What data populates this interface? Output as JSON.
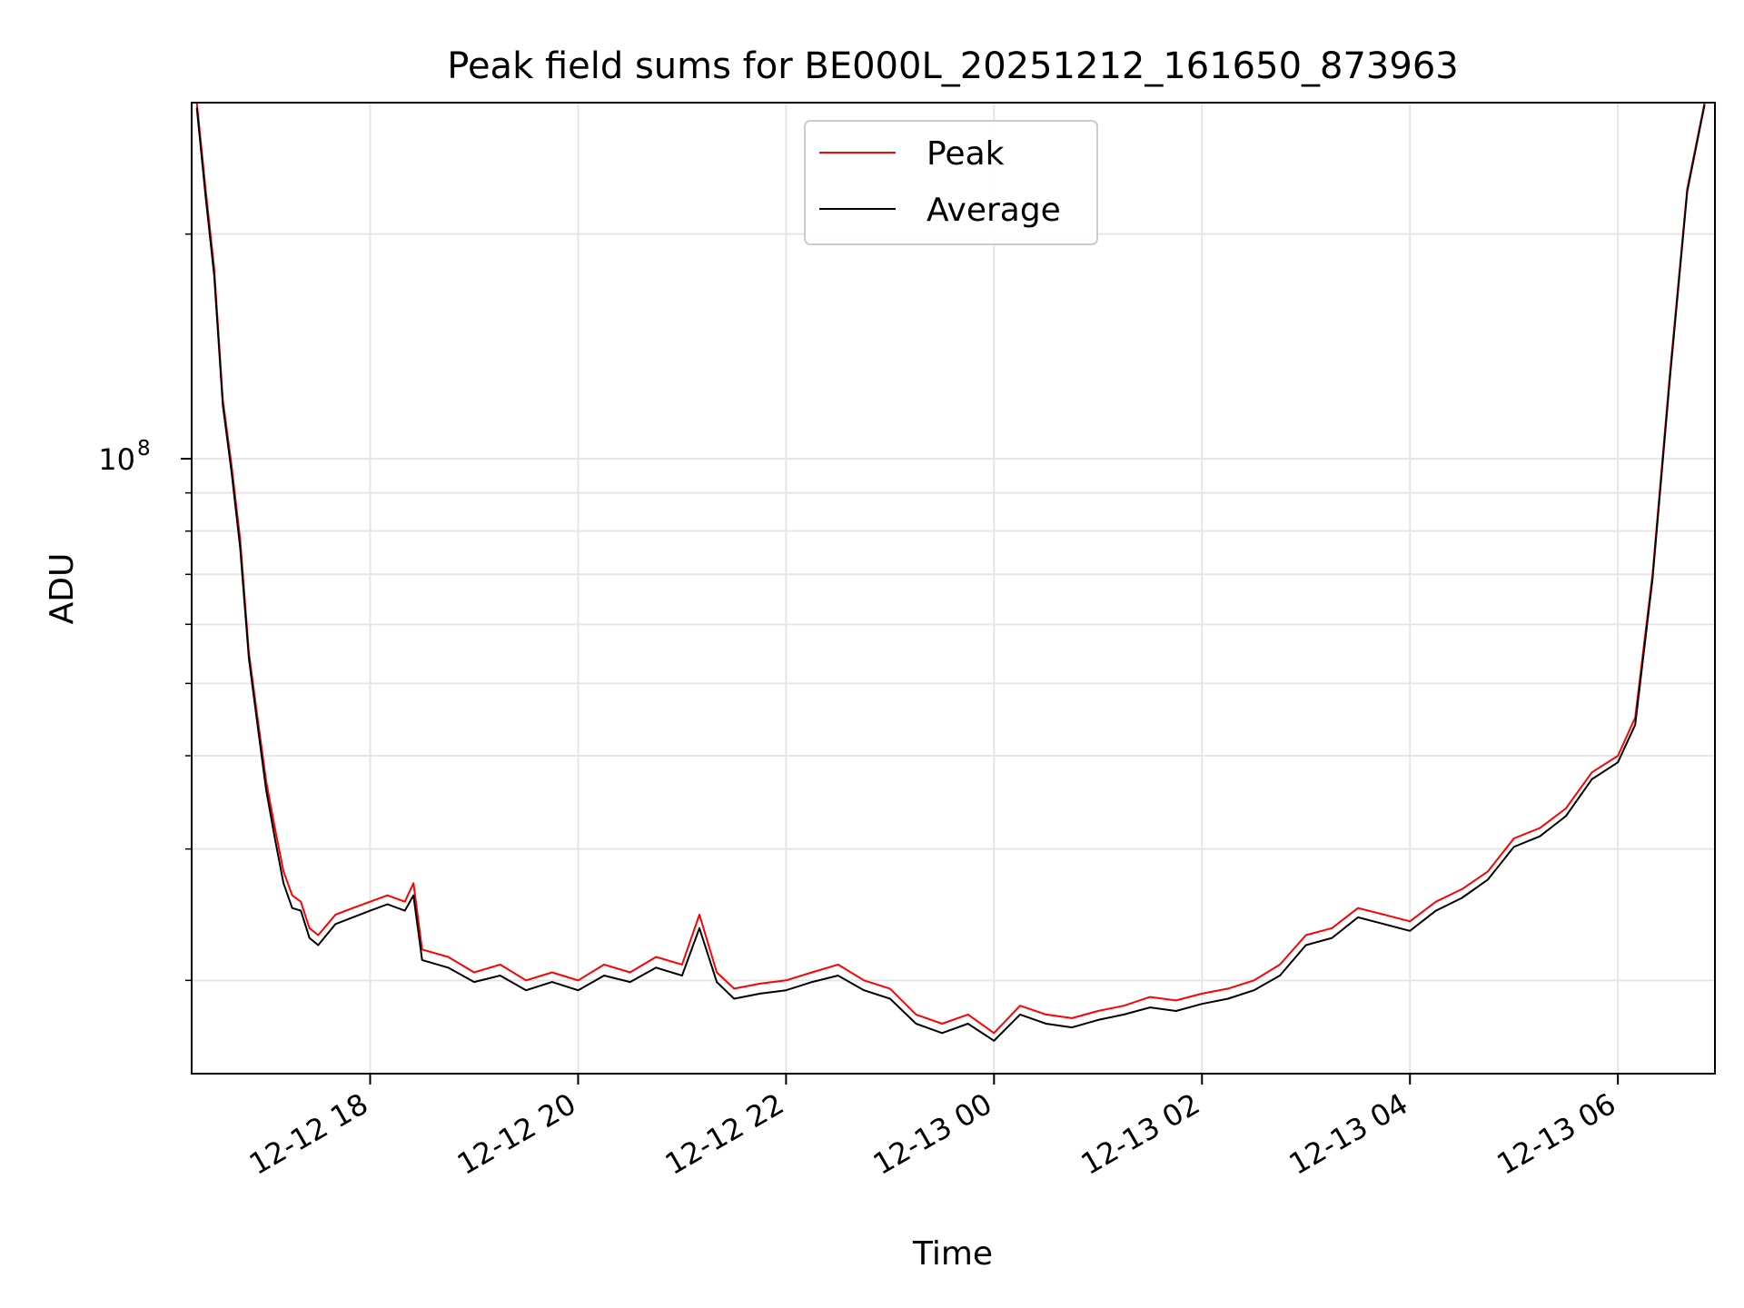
{
  "chart_data": {
    "type": "line",
    "title": "Peak field sums for BE000L_20251212_161650_873963",
    "xlabel": "Time",
    "ylabel": "ADU",
    "yscale": "log",
    "ylim": [
      15000000,
      300000000
    ],
    "xlim": [
      "2025-12-12T16:17:00",
      "2025-12-13T06:56:00"
    ],
    "grid": true,
    "legend_position": "top-center",
    "x_tick_labels": [
      {
        "t": "2025-12-12T18:00:00",
        "label": "12-12 18"
      },
      {
        "t": "2025-12-12T20:00:00",
        "label": "12-12 20"
      },
      {
        "t": "2025-12-12T22:00:00",
        "label": "12-12 22"
      },
      {
        "t": "2025-12-13T00:00:00",
        "label": "12-13 00"
      },
      {
        "t": "2025-12-13T02:00:00",
        "label": "12-13 02"
      },
      {
        "t": "2025-12-13T04:00:00",
        "label": "12-13 04"
      },
      {
        "t": "2025-12-13T06:00:00",
        "label": "12-13 06"
      }
    ],
    "y_major_ticks": [
      {
        "value": 100000000,
        "base": "10",
        "exp": "8"
      }
    ],
    "y_minor_ticks": [
      20000000,
      30000000,
      40000000,
      50000000,
      60000000,
      70000000,
      80000000,
      90000000,
      200000000
    ],
    "series": [
      {
        "name": "Peak",
        "color": "#ff0000",
        "times": [
          "2025-12-12T16:20:00",
          "2025-12-12T16:25:00",
          "2025-12-12T16:30:00",
          "2025-12-12T16:35:00",
          "2025-12-12T16:40:00",
          "2025-12-12T16:45:00",
          "2025-12-12T16:50:00",
          "2025-12-12T16:55:00",
          "2025-12-12T17:00:00",
          "2025-12-12T17:05:00",
          "2025-12-12T17:10:00",
          "2025-12-12T17:15:00",
          "2025-12-12T17:20:00",
          "2025-12-12T17:25:00",
          "2025-12-12T17:30:00",
          "2025-12-12T17:40:00",
          "2025-12-12T17:50:00",
          "2025-12-12T18:00:00",
          "2025-12-12T18:10:00",
          "2025-12-12T18:20:00",
          "2025-12-12T18:25:00",
          "2025-12-12T18:30:00",
          "2025-12-12T18:45:00",
          "2025-12-12T19:00:00",
          "2025-12-12T19:15:00",
          "2025-12-12T19:30:00",
          "2025-12-12T19:45:00",
          "2025-12-12T20:00:00",
          "2025-12-12T20:15:00",
          "2025-12-12T20:30:00",
          "2025-12-12T20:45:00",
          "2025-12-12T21:00:00",
          "2025-12-12T21:10:00",
          "2025-12-12T21:20:00",
          "2025-12-12T21:30:00",
          "2025-12-12T21:45:00",
          "2025-12-12T22:00:00",
          "2025-12-12T22:15:00",
          "2025-12-12T22:30:00",
          "2025-12-12T22:45:00",
          "2025-12-12T23:00:00",
          "2025-12-12T23:15:00",
          "2025-12-12T23:30:00",
          "2025-12-12T23:45:00",
          "2025-12-13T00:00:00",
          "2025-12-13T00:15:00",
          "2025-12-13T00:30:00",
          "2025-12-13T00:45:00",
          "2025-12-13T01:00:00",
          "2025-12-13T01:15:00",
          "2025-12-13T01:30:00",
          "2025-12-13T01:45:00",
          "2025-12-13T02:00:00",
          "2025-12-13T02:15:00",
          "2025-12-13T02:30:00",
          "2025-12-13T02:45:00",
          "2025-12-13T03:00:00",
          "2025-12-13T03:15:00",
          "2025-12-13T03:30:00",
          "2025-12-13T03:45:00",
          "2025-12-13T04:00:00",
          "2025-12-13T04:15:00",
          "2025-12-13T04:30:00",
          "2025-12-13T04:45:00",
          "2025-12-13T05:00:00",
          "2025-12-13T05:15:00",
          "2025-12-13T05:30:00",
          "2025-12-13T05:45:00",
          "2025-12-13T06:00:00",
          "2025-12-13T06:10:00",
          "2025-12-13T06:20:00",
          "2025-12-13T06:30:00",
          "2025-12-13T06:40:00",
          "2025-12-13T06:50:00"
        ],
        "values": [
          300000000,
          230000000,
          180000000,
          120000000,
          98000000,
          78000000,
          55000000,
          45000000,
          37000000,
          32000000,
          28000000,
          26000000,
          25500000,
          23500000,
          23000000,
          24500000,
          25000000,
          25500000,
          26000000,
          25500000,
          27000000,
          22000000,
          21500000,
          20500000,
          21000000,
          20000000,
          20500000,
          20000000,
          21000000,
          20500000,
          21500000,
          21000000,
          24500000,
          20500000,
          19500000,
          19800000,
          20000000,
          20500000,
          21000000,
          20000000,
          19500000,
          18000000,
          17500000,
          18000000,
          17000000,
          18500000,
          18000000,
          17800000,
          18200000,
          18500000,
          19000000,
          18800000,
          19200000,
          19500000,
          20000000,
          21000000,
          23000000,
          23500000,
          25000000,
          24500000,
          24000000,
          25500000,
          26500000,
          28000000,
          31000000,
          32000000,
          34000000,
          38000000,
          40000000,
          45000000,
          70000000,
          130000000,
          230000000,
          300000000
        ]
      },
      {
        "name": "Average",
        "color": "#000000",
        "times": [
          "2025-12-12T16:20:00",
          "2025-12-12T16:25:00",
          "2025-12-12T16:30:00",
          "2025-12-12T16:35:00",
          "2025-12-12T16:40:00",
          "2025-12-12T16:45:00",
          "2025-12-12T16:50:00",
          "2025-12-12T16:55:00",
          "2025-12-12T17:00:00",
          "2025-12-12T17:05:00",
          "2025-12-12T17:10:00",
          "2025-12-12T17:15:00",
          "2025-12-12T17:20:00",
          "2025-12-12T17:25:00",
          "2025-12-12T17:30:00",
          "2025-12-12T17:40:00",
          "2025-12-12T17:50:00",
          "2025-12-12T18:00:00",
          "2025-12-12T18:10:00",
          "2025-12-12T18:20:00",
          "2025-12-12T18:25:00",
          "2025-12-12T18:30:00",
          "2025-12-12T18:45:00",
          "2025-12-12T19:00:00",
          "2025-12-12T19:15:00",
          "2025-12-12T19:30:00",
          "2025-12-12T19:45:00",
          "2025-12-12T20:00:00",
          "2025-12-12T20:15:00",
          "2025-12-12T20:30:00",
          "2025-12-12T20:45:00",
          "2025-12-12T21:00:00",
          "2025-12-12T21:10:00",
          "2025-12-12T21:20:00",
          "2025-12-12T21:30:00",
          "2025-12-12T21:45:00",
          "2025-12-12T22:00:00",
          "2025-12-12T22:15:00",
          "2025-12-12T22:30:00",
          "2025-12-12T22:45:00",
          "2025-12-12T23:00:00",
          "2025-12-12T23:15:00",
          "2025-12-12T23:30:00",
          "2025-12-12T23:45:00",
          "2025-12-13T00:00:00",
          "2025-12-13T00:15:00",
          "2025-12-13T00:30:00",
          "2025-12-13T00:45:00",
          "2025-12-13T01:00:00",
          "2025-12-13T01:15:00",
          "2025-12-13T01:30:00",
          "2025-12-13T01:45:00",
          "2025-12-13T02:00:00",
          "2025-12-13T02:15:00",
          "2025-12-13T02:30:00",
          "2025-12-13T02:45:00",
          "2025-12-13T03:00:00",
          "2025-12-13T03:15:00",
          "2025-12-13T03:30:00",
          "2025-12-13T03:45:00",
          "2025-12-13T04:00:00",
          "2025-12-13T04:15:00",
          "2025-12-13T04:30:00",
          "2025-12-13T04:45:00",
          "2025-12-13T05:00:00",
          "2025-12-13T05:15:00",
          "2025-12-13T05:30:00",
          "2025-12-13T05:45:00",
          "2025-12-13T06:00:00",
          "2025-12-13T06:10:00",
          "2025-12-13T06:20:00",
          "2025-12-13T06:30:00",
          "2025-12-13T06:40:00",
          "2025-12-13T06:50:00"
        ],
        "values": [
          295000000,
          225000000,
          176000000,
          118000000,
          96000000,
          76000000,
          54000000,
          44000000,
          36000000,
          31000000,
          27000000,
          25000000,
          24800000,
          22800000,
          22300000,
          23800000,
          24300000,
          24800000,
          25300000,
          24800000,
          26000000,
          21300000,
          20800000,
          19900000,
          20300000,
          19400000,
          19900000,
          19400000,
          20300000,
          19900000,
          20800000,
          20300000,
          23500000,
          19900000,
          18900000,
          19200000,
          19400000,
          19900000,
          20300000,
          19400000,
          18900000,
          17500000,
          17000000,
          17500000,
          16600000,
          18000000,
          17500000,
          17300000,
          17700000,
          18000000,
          18400000,
          18200000,
          18600000,
          18900000,
          19400000,
          20300000,
          22300000,
          22800000,
          24300000,
          23800000,
          23300000,
          24800000,
          25800000,
          27300000,
          30200000,
          31200000,
          33200000,
          37200000,
          39200000,
          44000000,
          69000000,
          128000000,
          228000000,
          298000000
        ]
      }
    ]
  }
}
